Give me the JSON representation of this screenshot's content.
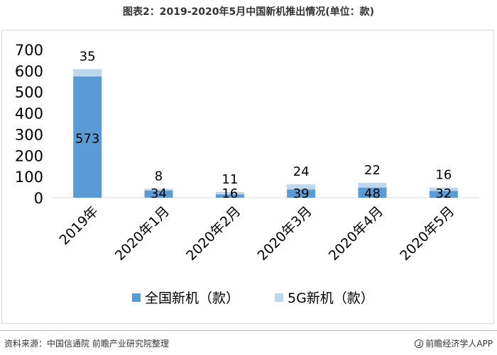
{
  "title": "图表2：2019-2020年5月中国新机推出情况(单位：款)",
  "footer": {
    "source": "资料来源：中国信通院 前瞻产业研究院整理",
    "brand": "前瞻经济学人APP"
  },
  "chart_data": {
    "type": "bar",
    "stacked": true,
    "categories": [
      "2019年",
      "2020年1月",
      "2020年2月",
      "2020年3月",
      "2020年4月",
      "2020年5月"
    ],
    "series": [
      {
        "name": "全国新机（款）",
        "values": [
          573,
          34,
          16,
          39,
          48,
          32
        ],
        "color": "#5b9bd5"
      },
      {
        "name": "5G新机（款）",
        "values": [
          35,
          8,
          11,
          24,
          22,
          16
        ],
        "color": "#bdd7ee"
      }
    ],
    "ylim": [
      0,
      700
    ],
    "yticks": [
      0,
      100,
      200,
      300,
      400,
      500,
      600,
      700
    ],
    "xlabel": "",
    "ylabel": "",
    "grid": false,
    "legend": "bottom"
  }
}
